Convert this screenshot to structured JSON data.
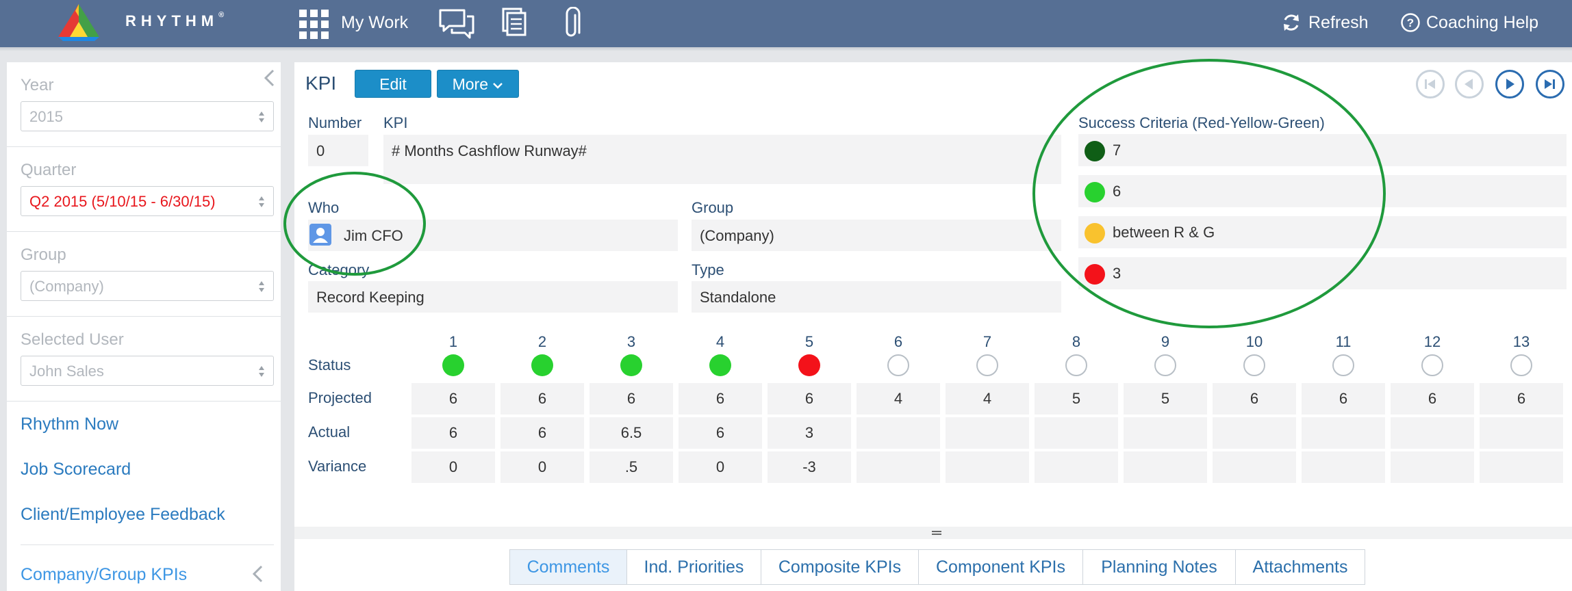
{
  "header": {
    "brand": "RHYTHM",
    "brand_mark": "®",
    "my_work": "My Work",
    "refresh": "Refresh",
    "coaching_help": "Coaching Help"
  },
  "sidebar": {
    "year_label": "Year",
    "year_value": "2015",
    "quarter_label": "Quarter",
    "quarter_value": "Q2 2015 (5/10/15 - 6/30/15)",
    "group_label": "Group",
    "group_value": "(Company)",
    "user_label": "Selected User",
    "user_value": "John Sales",
    "links": [
      "Rhythm Now",
      "Job Scorecard",
      "Client/Employee Feedback"
    ],
    "section": "Company/Group KPIs"
  },
  "kpi": {
    "title": "KPI",
    "edit": "Edit",
    "more": "More",
    "number_label": "Number",
    "number_value": "0",
    "kpi_label": "KPI",
    "kpi_value": "# Months Cashflow Runway#",
    "who_label": "Who",
    "who_value": "Jim CFO",
    "group_label": "Group",
    "group_value": "(Company)",
    "category_label": "Category",
    "category_value": "Record Keeping",
    "type_label": "Type",
    "type_value": "Standalone",
    "criteria_label": "Success Criteria (Red-Yellow-Green)",
    "criteria": [
      {
        "text": "7",
        "color": "#0f5e16"
      },
      {
        "text": "6",
        "color": "#28d12f"
      },
      {
        "text": "between R & G",
        "color": "#f9c22e"
      },
      {
        "text": "3",
        "color": "#f3121a"
      }
    ]
  },
  "grid": {
    "status_label": "Status",
    "projected_label": "Projected",
    "actual_label": "Actual",
    "variance_label": "Variance",
    "periods": [
      "1",
      "2",
      "3",
      "4",
      "5",
      "6",
      "7",
      "8",
      "9",
      "10",
      "11",
      "12",
      "13"
    ],
    "status": [
      "green",
      "green",
      "green",
      "green",
      "red",
      "none",
      "none",
      "none",
      "none",
      "none",
      "none",
      "none",
      "none"
    ],
    "projected": [
      "6",
      "6",
      "6",
      "6",
      "6",
      "4",
      "4",
      "5",
      "5",
      "6",
      "6",
      "6",
      "6"
    ],
    "actual": [
      "6",
      "6",
      "6.5",
      "6",
      "3",
      "",
      "",
      "",
      "",
      "",
      "",
      "",
      ""
    ],
    "variance": [
      "0",
      "0",
      ".5",
      "0",
      "-3",
      "",
      "",
      "",
      "",
      "",
      "",
      "",
      ""
    ]
  },
  "tabs": [
    "Comments",
    "Ind. Priorities",
    "Composite KPIs",
    "Component KPIs",
    "Planning Notes",
    "Attachments"
  ],
  "colors": {
    "header_bg": "#566f94",
    "accent": "#1c8ec8",
    "annotation_green": "#1f9a3c",
    "status_green": "#28d12f",
    "status_red": "#f3121a"
  }
}
